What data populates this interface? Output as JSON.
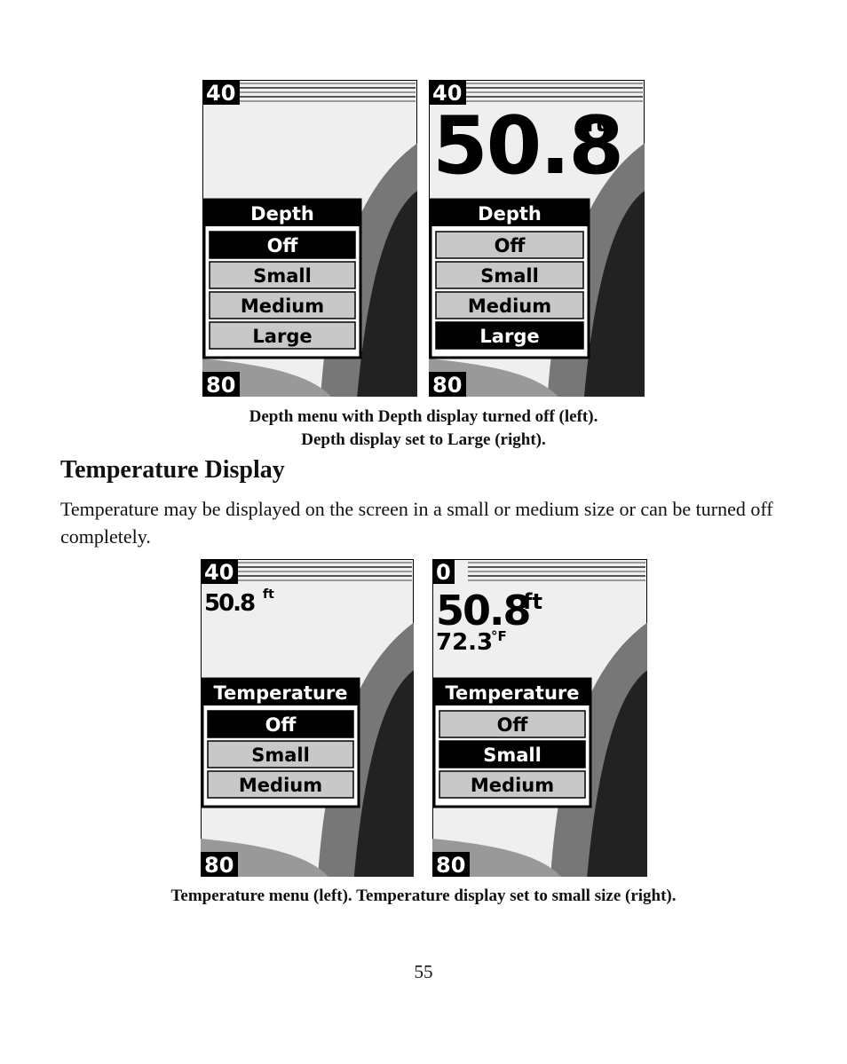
{
  "figures": [
    {
      "screens": [
        {
          "top_scale": "40",
          "bottom_scale": "80",
          "menu": {
            "title": "Depth",
            "items": [
              "Off",
              "Small",
              "Medium",
              "Large"
            ],
            "selected": 0
          }
        },
        {
          "top_scale": "40",
          "bottom_scale": "80",
          "depth": "50.8",
          "depth_unit": "ft",
          "menu": {
            "title": "Depth",
            "items": [
              "Off",
              "Small",
              "Medium",
              "Large"
            ],
            "selected": 3
          }
        }
      ],
      "caption": [
        "Depth menu with Depth display turned off (left).",
        "Depth display set to Large (right)."
      ]
    },
    {
      "screens": [
        {
          "top_scale": "40",
          "bottom_scale": "80",
          "depth": "50.8",
          "depth_unit": "ft",
          "menu": {
            "title": "Temperature",
            "items": [
              "Off",
              "Small",
              "Medium"
            ],
            "selected": 0
          }
        },
        {
          "top_scale": "0",
          "bottom_scale": "80",
          "depth": "50.8",
          "depth_unit": "ft",
          "temperature": "72.3",
          "temperature_unit": "°F",
          "menu": {
            "title": "Temperature",
            "items": [
              "Off",
              "Small",
              "Medium"
            ],
            "selected": 1
          }
        }
      ],
      "caption": [
        "Temperature menu (left). Temperature display set to small size (right)."
      ]
    }
  ],
  "section": {
    "heading": "Temperature Display",
    "body": "Temperature may be displayed on the screen in a small or medium size or can be turned off completely."
  },
  "page_number": "55"
}
